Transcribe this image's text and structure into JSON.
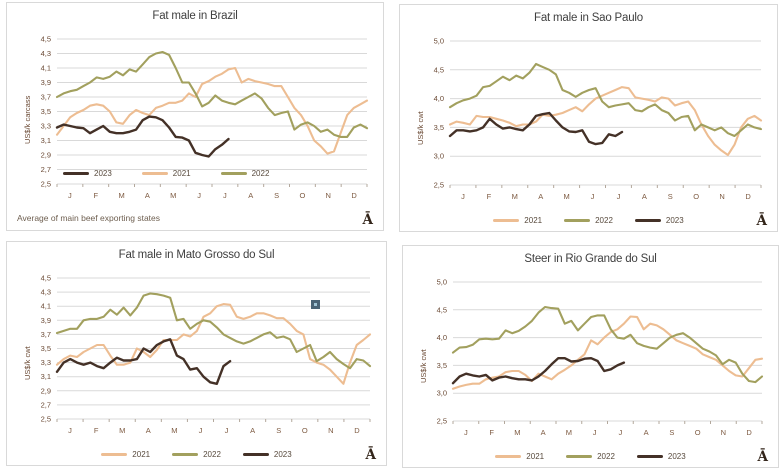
{
  "months": [
    "J",
    "F",
    "M",
    "A",
    "M",
    "J",
    "J",
    "A",
    "S",
    "O",
    "N",
    "D"
  ],
  "colors": {
    "background": "#ffffff",
    "box_border": "#d9d9d9",
    "grid": "#d9d9d9",
    "axis_tick": "#b3a89c",
    "tick_text": "#6b4a35",
    "month_text": "#7d5a41",
    "title_text": "#3f3f3f",
    "legend_text": "#57493c",
    "footer_text": "#6e5f50",
    "watermark_text": "#33251a",
    "series_2021": "#edbd92",
    "series_2022": "#a2a05e",
    "series_2023": "#443127",
    "marker_square": "#4a6375",
    "marker_dot": "#9fc3d4"
  },
  "chart_data": [
    {
      "type": "line",
      "title": "Fat male in Brazil",
      "ylabel": "US$/k carcass",
      "footer": "Average of main beef exporting states",
      "watermark": "Ā",
      "ylim": [
        2.5,
        4.5
      ],
      "ytick_step": 0.2,
      "x_ticklabels": [
        "J",
        "F",
        "M",
        "A",
        "M",
        "J",
        "J",
        "A",
        "S",
        "O",
        "N",
        "D"
      ],
      "grid": true,
      "legend_position": "inside-bottom-left",
      "legend": [
        "2023",
        "2021",
        "2022"
      ],
      "series": [
        {
          "name": "2021",
          "color": "#edbd92",
          "values": [
            3.18,
            3.3,
            3.42,
            3.48,
            3.52,
            3.58,
            3.6,
            3.58,
            3.5,
            3.35,
            3.33,
            3.45,
            3.52,
            3.48,
            3.45,
            3.55,
            3.58,
            3.62,
            3.62,
            3.65,
            3.75,
            3.7,
            3.88,
            3.92,
            3.98,
            4.02,
            4.08,
            4.1,
            3.9,
            3.95,
            3.92,
            3.9,
            3.88,
            3.85,
            3.85,
            3.7,
            3.55,
            3.45,
            3.3,
            3.1,
            3.02,
            2.92,
            2.95,
            3.2,
            3.45,
            3.55,
            3.6,
            3.65
          ]
        },
        {
          "name": "2022",
          "color": "#a2a05e",
          "values": [
            3.7,
            3.75,
            3.78,
            3.8,
            3.85,
            3.9,
            3.97,
            3.95,
            3.98,
            4.05,
            4.0,
            4.08,
            4.05,
            4.15,
            4.25,
            4.3,
            4.32,
            4.28,
            4.1,
            3.9,
            3.9,
            3.75,
            3.57,
            3.62,
            3.72,
            3.65,
            3.62,
            3.6,
            3.65,
            3.7,
            3.75,
            3.68,
            3.55,
            3.45,
            3.48,
            3.5,
            3.25,
            3.32,
            3.35,
            3.3,
            3.22,
            3.25,
            3.18,
            3.15,
            3.15,
            3.28,
            3.32,
            3.27
          ]
        },
        {
          "name": "2023",
          "color": "#443127",
          "values": [
            3.28,
            3.32,
            3.3,
            3.28,
            3.27,
            3.2,
            3.25,
            3.3,
            3.22,
            3.2,
            3.2,
            3.22,
            3.25,
            3.38,
            3.43,
            3.42,
            3.38,
            3.28,
            3.15,
            3.14,
            3.1,
            2.93,
            2.9,
            2.88,
            2.98,
            3.04,
            3.12
          ]
        }
      ]
    },
    {
      "type": "line",
      "title": "Fat male in Sao Paulo",
      "ylabel": "US$/k cwt",
      "watermark": "Ā",
      "ylim": [
        2.5,
        5.0
      ],
      "ytick_step": 0.5,
      "x_ticklabels": [
        "J",
        "F",
        "M",
        "A",
        "M",
        "J",
        "J",
        "A",
        "S",
        "O",
        "N",
        "D"
      ],
      "grid": true,
      "legend_position": "below-center",
      "legend": [
        "2021",
        "2022",
        "2023"
      ],
      "series": [
        {
          "name": "2021",
          "color": "#edbd92",
          "values": [
            3.55,
            3.6,
            3.58,
            3.55,
            3.7,
            3.68,
            3.68,
            3.65,
            3.62,
            3.58,
            3.52,
            3.55,
            3.55,
            3.6,
            3.72,
            3.7,
            3.72,
            3.75,
            3.8,
            3.85,
            3.78,
            3.9,
            4.0,
            4.05,
            4.1,
            4.15,
            4.2,
            4.18,
            4.02,
            4.0,
            3.98,
            3.95,
            4.02,
            4.0,
            3.88,
            3.92,
            3.95,
            3.8,
            3.55,
            3.35,
            3.2,
            3.1,
            3.02,
            3.2,
            3.5,
            3.65,
            3.7,
            3.62
          ]
        },
        {
          "name": "2022",
          "color": "#a2a05e",
          "values": [
            3.85,
            3.92,
            3.97,
            4.0,
            4.05,
            4.2,
            4.22,
            4.3,
            4.38,
            4.32,
            4.4,
            4.35,
            4.45,
            4.6,
            4.55,
            4.5,
            4.42,
            4.15,
            4.1,
            4.03,
            4.1,
            4.15,
            4.18,
            3.95,
            3.85,
            3.88,
            3.9,
            3.92,
            3.8,
            3.78,
            3.85,
            3.9,
            3.8,
            3.75,
            3.62,
            3.68,
            3.7,
            3.45,
            3.55,
            3.5,
            3.45,
            3.5,
            3.4,
            3.35,
            3.45,
            3.55,
            3.5,
            3.47
          ]
        },
        {
          "name": "2023",
          "color": "#443127",
          "values": [
            3.35,
            3.45,
            3.45,
            3.43,
            3.45,
            3.5,
            3.65,
            3.55,
            3.48,
            3.5,
            3.47,
            3.45,
            3.55,
            3.7,
            3.73,
            3.75,
            3.62,
            3.5,
            3.43,
            3.42,
            3.45,
            3.25,
            3.21,
            3.23,
            3.38,
            3.35,
            3.42
          ]
        }
      ]
    },
    {
      "type": "line",
      "title": "Fat male in Mato Grosso do Sul",
      "ylabel": "US$/k cwt",
      "watermark": "Ā",
      "ylim": [
        2.5,
        4.5
      ],
      "ytick_step": 0.2,
      "x_ticklabels": [
        "J",
        "F",
        "M",
        "A",
        "M",
        "J",
        "J",
        "A",
        "S",
        "O",
        "N",
        "D"
      ],
      "grid": true,
      "legend_position": "below-center",
      "legend": [
        "2021",
        "2022",
        "2023"
      ],
      "has_selection_marker": true,
      "series": [
        {
          "name": "2021",
          "color": "#edbd92",
          "values": [
            3.27,
            3.35,
            3.4,
            3.38,
            3.45,
            3.5,
            3.55,
            3.55,
            3.4,
            3.27,
            3.27,
            3.3,
            3.5,
            3.45,
            3.38,
            3.48,
            3.62,
            3.62,
            3.62,
            3.7,
            3.67,
            3.75,
            3.95,
            4.0,
            4.1,
            4.13,
            4.12,
            3.95,
            3.92,
            3.95,
            4.0,
            4.0,
            3.97,
            3.93,
            3.93,
            3.85,
            3.75,
            3.7,
            3.35,
            3.3,
            3.27,
            3.2,
            3.1,
            3.0,
            3.3,
            3.55,
            3.62,
            3.7
          ]
        },
        {
          "name": "2022",
          "color": "#a2a05e",
          "values": [
            3.72,
            3.75,
            3.78,
            3.78,
            3.9,
            3.92,
            3.92,
            3.95,
            4.05,
            3.98,
            4.08,
            3.97,
            4.08,
            4.25,
            4.28,
            4.27,
            4.25,
            4.22,
            3.9,
            3.92,
            3.78,
            3.85,
            3.9,
            3.88,
            3.8,
            3.7,
            3.65,
            3.6,
            3.57,
            3.6,
            3.65,
            3.7,
            3.73,
            3.65,
            3.67,
            3.63,
            3.45,
            3.5,
            3.55,
            3.32,
            3.38,
            3.45,
            3.35,
            3.28,
            3.22,
            3.35,
            3.33,
            3.25
          ]
        },
        {
          "name": "2023",
          "color": "#443127",
          "values": [
            3.17,
            3.3,
            3.35,
            3.3,
            3.27,
            3.3,
            3.25,
            3.22,
            3.3,
            3.37,
            3.33,
            3.33,
            3.35,
            3.5,
            3.45,
            3.55,
            3.6,
            3.63,
            3.4,
            3.35,
            3.2,
            3.22,
            3.1,
            3.02,
            3.0,
            3.25,
            3.32
          ]
        }
      ]
    },
    {
      "type": "line",
      "title": "Steer  in Rio Grande do Sul",
      "ylabel": "US$/k cwt",
      "watermark": "Ā",
      "ylim": [
        2.5,
        5.0
      ],
      "ytick_step": 0.5,
      "x_ticklabels": [
        "J",
        "F",
        "M",
        "A",
        "M",
        "J",
        "J",
        "A",
        "S",
        "O",
        "N",
        "D"
      ],
      "grid": true,
      "legend_position": "below-center",
      "legend": [
        "2021",
        "2022",
        "2023"
      ],
      "series": [
        {
          "name": "2021",
          "color": "#edbd92",
          "values": [
            3.08,
            3.12,
            3.15,
            3.17,
            3.17,
            3.25,
            3.28,
            3.3,
            3.38,
            3.4,
            3.4,
            3.33,
            3.22,
            3.35,
            3.3,
            3.25,
            3.35,
            3.42,
            3.5,
            3.6,
            3.7,
            3.95,
            3.88,
            4.0,
            4.1,
            4.15,
            4.25,
            4.38,
            4.37,
            4.15,
            4.25,
            4.22,
            4.15,
            4.05,
            3.95,
            3.9,
            3.85,
            3.8,
            3.7,
            3.65,
            3.6,
            3.5,
            3.4,
            3.32,
            3.3,
            3.45,
            3.6,
            3.62
          ]
        },
        {
          "name": "2022",
          "color": "#a2a05e",
          "values": [
            3.73,
            3.82,
            3.83,
            3.87,
            3.97,
            3.98,
            3.97,
            3.98,
            4.13,
            4.08,
            4.12,
            4.2,
            4.3,
            4.45,
            4.55,
            4.53,
            4.52,
            4.25,
            4.3,
            4.13,
            4.25,
            4.37,
            4.4,
            4.4,
            4.15,
            4.0,
            3.98,
            4.05,
            3.9,
            3.85,
            3.82,
            3.8,
            3.9,
            4.0,
            4.05,
            4.08,
            4.0,
            3.9,
            3.8,
            3.75,
            3.68,
            3.52,
            3.6,
            3.55,
            3.35,
            3.22,
            3.2,
            3.3
          ]
        },
        {
          "name": "2023",
          "color": "#443127",
          "values": [
            3.18,
            3.3,
            3.35,
            3.32,
            3.3,
            3.33,
            3.23,
            3.28,
            3.3,
            3.27,
            3.25,
            3.25,
            3.23,
            3.3,
            3.4,
            3.52,
            3.63,
            3.63,
            3.57,
            3.58,
            3.62,
            3.63,
            3.58,
            3.4,
            3.43,
            3.5,
            3.55
          ]
        }
      ]
    }
  ]
}
